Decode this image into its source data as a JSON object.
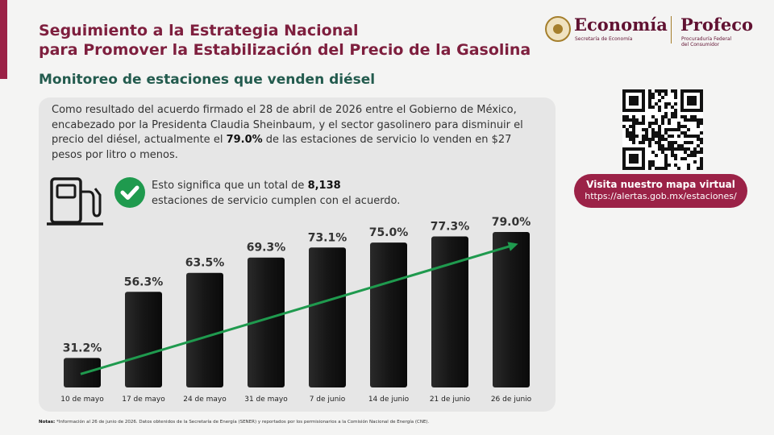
{
  "header": {
    "title_line1": "Seguimiento a la Estrategia Nacional",
    "title_line2": "para Promover la Estabilización del Precio de la Gasolina",
    "subtitle": "Monitoreo de estaciones que venden diésel"
  },
  "logos": {
    "economia_name": "Economía",
    "economia_sub": "Secretaría de Economía",
    "profeco_name": "Profeco",
    "profeco_sub_line1": "Procuraduría Federal",
    "profeco_sub_line2": "del Consumidor"
  },
  "intro": {
    "text_before": "Como resultado del acuerdo firmado el 28 de abril de 2026 entre el Gobierno de México, encabezado por la Presidenta Claudia Sheinbaum, y el sector gasolinero para disminuir el precio del diésel, actualmente el ",
    "highlight": "79.0%",
    "text_after": " de las estaciones de servicio lo venden en $27 pesos por litro o menos."
  },
  "agreement": {
    "text_before": "Esto significa que un total de ",
    "highlight": "8,138",
    "text_after": "estaciones de servicio cumplen con el acuerdo."
  },
  "cta": {
    "title": "Visita nuestro mapa virtual",
    "url": "https://alertas.gob.mx/estaciones/"
  },
  "notes": {
    "label": "Notas:",
    "text": " *Información al 26 de junio de 2026. Datos obtenidos de la Secretaría de Energía (SENER) y reportados por los permisionarios a la Comisión Nacional de Energía (CNE)."
  },
  "colors": {
    "brand": "#9b2247",
    "title": "#7e1f3e",
    "subtitle": "#235b4e",
    "bar": "#161616",
    "trend": "#1f9a4e"
  },
  "icons": [
    "fuel-pump-icon",
    "check-circle-icon",
    "qr-code",
    "mexico-seal-icon"
  ],
  "chart_data": {
    "type": "bar",
    "categories": [
      "10 de mayo",
      "17 de mayo",
      "24 de mayo",
      "31 de mayo",
      "7 de junio",
      "14 de junio",
      "21 de junio",
      "26 de junio"
    ],
    "values": [
      31.2,
      56.3,
      63.5,
      69.3,
      73.1,
      75.0,
      77.3,
      79.0
    ],
    "value_labels": [
      "31.2%",
      "56.3%",
      "63.5%",
      "69.3%",
      "73.1%",
      "75.0%",
      "77.3%",
      "79.0%"
    ],
    "title": "",
    "xlabel": "",
    "ylabel": "",
    "ylim": [
      20,
      80
    ],
    "grid": false,
    "trend_arrow": true
  }
}
